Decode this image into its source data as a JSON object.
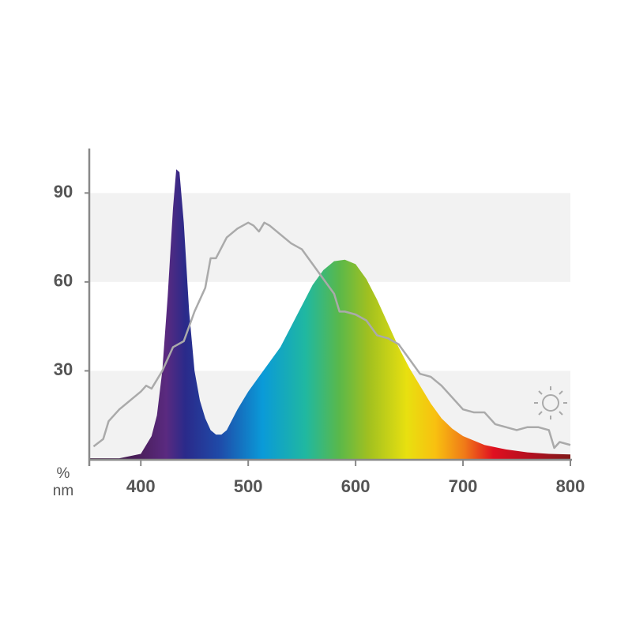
{
  "chart_data": {
    "type": "area-line",
    "x_label": "nm",
    "y_label": "%",
    "xlim": [
      352,
      800
    ],
    "ylim": [
      0,
      105
    ],
    "xticks": [
      400,
      500,
      600,
      700,
      800
    ],
    "yticks": [
      30,
      60,
      90
    ],
    "series": [
      {
        "kind": "area",
        "x": [
          352,
          380,
          400,
          410,
          415,
          420,
          425,
          430,
          433,
          436,
          440,
          445,
          450,
          455,
          460,
          465,
          470,
          475,
          480,
          490,
          500,
          510,
          520,
          530,
          540,
          550,
          560,
          570,
          580,
          590,
          600,
          610,
          620,
          630,
          640,
          650,
          660,
          670,
          680,
          690,
          700,
          720,
          740,
          760,
          780,
          800
        ],
        "values": [
          0.5,
          0.5,
          2,
          8,
          15,
          30,
          55,
          85,
          98,
          97,
          80,
          50,
          30,
          20,
          14,
          10,
          8.5,
          8.5,
          10,
          17,
          23,
          28,
          33,
          38,
          45,
          52,
          59,
          64,
          67,
          67.5,
          66,
          61,
          54,
          46,
          38,
          31,
          25,
          19,
          14,
          10.5,
          8,
          5,
          3.5,
          2.5,
          2,
          1.8
        ]
      },
      {
        "kind": "line",
        "color": "#aaaaaa",
        "x": [
          356,
          365,
          370,
          380,
          390,
          400,
          405,
          410,
          420,
          430,
          440,
          450,
          460,
          465,
          470,
          480,
          490,
          500,
          505,
          510,
          515,
          520,
          530,
          540,
          550,
          560,
          570,
          580,
          585,
          590,
          600,
          610,
          620,
          630,
          640,
          650,
          660,
          670,
          680,
          690,
          700,
          710,
          720,
          730,
          740,
          750,
          760,
          770,
          780,
          785,
          790,
          800
        ],
        "values": [
          4.5,
          7,
          13,
          17,
          20,
          23,
          25,
          24,
          30,
          38,
          40,
          50,
          58,
          68,
          68,
          75,
          78,
          80,
          79,
          77,
          80,
          79,
          76,
          73,
          71,
          66,
          61,
          56,
          50,
          50,
          49,
          47,
          42,
          41,
          39,
          34,
          29,
          28,
          25,
          21,
          17,
          16,
          16,
          12,
          11,
          10,
          11,
          11,
          10,
          4,
          6,
          5
        ]
      }
    ]
  }
}
